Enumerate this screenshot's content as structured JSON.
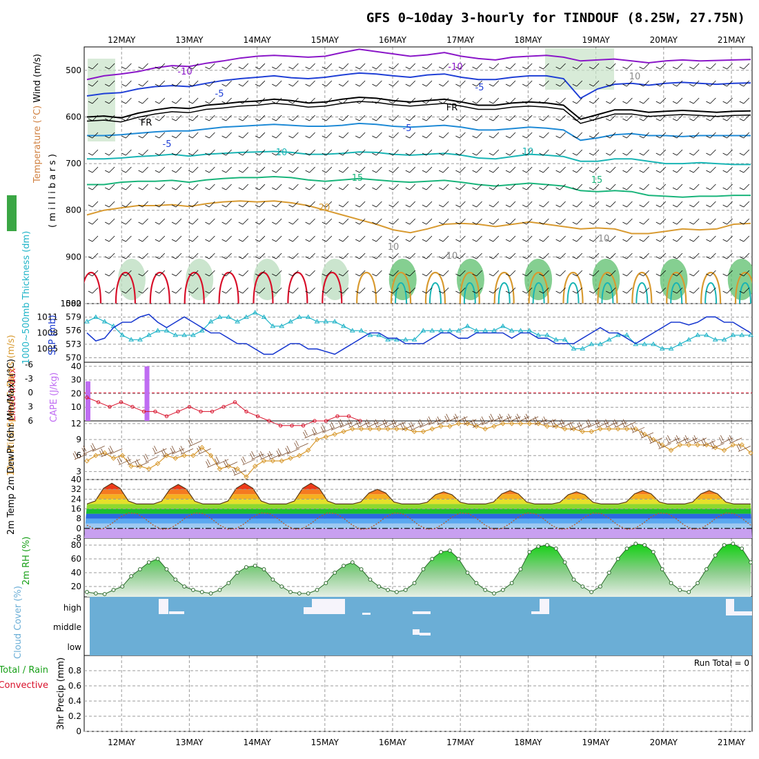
{
  "title": "GFS 0~10day 3-hourly for TINDOUF (8.25W, 27.75N)",
  "dates": [
    "12MAY",
    "13MAY",
    "14MAY",
    "15MAY",
    "16MAY",
    "17MAY",
    "18MAY",
    "19MAY",
    "20MAY",
    "21MAY"
  ],
  "colors": {
    "purple": "#8a16c8",
    "blue": "#1f3fd6",
    "skyblue": "#1e8ad6",
    "teal": "#18b4b4",
    "green": "#18b47a",
    "orange": "#d89a30",
    "red": "#d8102a",
    "darkred": "#a01010",
    "cyan": "#20b4c8",
    "slp": "#1a3ad0",
    "cloud": "#6baed6",
    "cape": "#bf6cf2",
    "rh": "#18c818"
  },
  "chart_data": [
    {
      "type": "heatmap",
      "name": "upper-air",
      "ylabel_parts": [
        "Wind (m/s)",
        "Temperature (°C)",
        "RH (%)",
        "( m i l l i b a r s )"
      ],
      "y_ticks": [
        500,
        600,
        700,
        800,
        900,
        1000
      ],
      "ylim": [
        1000,
        450
      ],
      "contour_labels": [
        "-10",
        "-10",
        "-5",
        "-5",
        "FR",
        "FR",
        "-5",
        "-5",
        "10",
        "10",
        "15",
        "15",
        "20",
        "10",
        "10",
        "10",
        "10"
      ],
      "isotherms": [
        {
          "name": "-10",
          "p": [
            520,
            512,
            508,
            503,
            495,
            490,
            492,
            485,
            480,
            474,
            470,
            468,
            470,
            472,
            470,
            462,
            455,
            460,
            465,
            470,
            467,
            462,
            470,
            475,
            478,
            472,
            470,
            468,
            472,
            480,
            478,
            476,
            480,
            484,
            480,
            478,
            480,
            479,
            478,
            477
          ]
        },
        {
          "name": "-5",
          "p": [
            555,
            550,
            548,
            540,
            535,
            533,
            535,
            528,
            522,
            518,
            515,
            512,
            516,
            518,
            515,
            510,
            506,
            508,
            512,
            515,
            510,
            508,
            515,
            520,
            520,
            515,
            512,
            512,
            518,
            560,
            540,
            530,
            528,
            532,
            528,
            526,
            528,
            530,
            528,
            527
          ]
        },
        {
          "name": "FR",
          "p": [
            600,
            598,
            602,
            592,
            585,
            580,
            582,
            575,
            572,
            568,
            566,
            562,
            565,
            570,
            568,
            562,
            558,
            560,
            565,
            568,
            565,
            562,
            568,
            575,
            575,
            570,
            568,
            570,
            575,
            605,
            595,
            585,
            585,
            590,
            588,
            586,
            588,
            590,
            588,
            587
          ]
        },
        {
          "name": "5",
          "p": [
            640,
            640,
            638,
            635,
            632,
            630,
            630,
            626,
            622,
            620,
            618,
            616,
            618,
            620,
            620,
            618,
            614,
            616,
            620,
            622,
            620,
            618,
            622,
            628,
            628,
            625,
            622,
            624,
            628,
            650,
            645,
            638,
            636,
            640,
            640,
            642,
            640,
            640,
            640,
            640
          ]
        },
        {
          "name": "10",
          "p": [
            690,
            690,
            688,
            685,
            683,
            680,
            684,
            680,
            678,
            676,
            675,
            674,
            676,
            680,
            680,
            678,
            675,
            676,
            680,
            682,
            680,
            678,
            682,
            688,
            690,
            685,
            680,
            682,
            685,
            695,
            695,
            690,
            690,
            695,
            700,
            700,
            698,
            700,
            702,
            702
          ]
        },
        {
          "name": "15",
          "p": [
            745,
            745,
            740,
            738,
            738,
            736,
            740,
            735,
            732,
            730,
            730,
            728,
            730,
            735,
            738,
            735,
            732,
            735,
            738,
            740,
            738,
            736,
            740,
            745,
            748,
            745,
            742,
            745,
            748,
            758,
            760,
            758,
            760,
            768,
            770,
            772,
            770,
            770,
            768,
            768
          ]
        },
        {
          "name": "20",
          "p": [
            810,
            800,
            795,
            790,
            790,
            788,
            792,
            786,
            782,
            780,
            782,
            780,
            784,
            790,
            800,
            810,
            820,
            830,
            842,
            848,
            840,
            830,
            828,
            830,
            835,
            830,
            825,
            830,
            835,
            840,
            838,
            840,
            850,
            850,
            845,
            840,
            842,
            840,
            830,
            828
          ]
        }
      ]
    },
    {
      "type": "line",
      "name": "thickness-slp",
      "ylabel": "1000~500mb Thickness (dm)",
      "ylabel2": "SLP (mb)",
      "thickness_ticks": [
        570,
        573,
        576,
        579,
        582
      ],
      "slp_ticks": [
        1005,
        1008,
        1011
      ],
      "series": [
        {
          "name": "1000~500mb Thickness (dm)",
          "values": [
            578,
            579,
            578,
            577,
            575,
            574,
            574,
            575,
            576,
            576,
            575,
            575,
            575,
            576,
            578,
            579,
            579,
            578,
            579,
            580,
            579,
            577,
            577,
            578,
            579,
            579,
            578,
            578,
            578,
            577,
            576,
            576,
            575,
            575,
            574,
            574,
            574,
            574,
            576,
            576,
            576,
            576,
            576,
            577,
            576,
            576,
            576,
            577,
            576,
            576,
            576,
            575,
            575,
            574,
            574,
            572,
            572,
            573,
            573,
            574,
            575,
            575,
            573,
            573,
            573,
            572,
            572,
            573,
            574,
            575,
            575,
            574,
            574,
            575,
            575,
            575
          ]
        },
        {
          "name": "SLP (mb)",
          "values": [
            1008,
            1006.5,
            1007,
            1009,
            1010,
            1010,
            1011,
            1011.5,
            1010,
            1009,
            1010,
            1011,
            1010,
            1009,
            1008,
            1008,
            1007,
            1006,
            1006,
            1005,
            1004,
            1004,
            1005,
            1006,
            1006,
            1005,
            1005,
            1004.5,
            1004,
            1005,
            1006,
            1007,
            1008,
            1008,
            1007,
            1007,
            1006,
            1006,
            1006,
            1007,
            1008,
            1008,
            1007,
            1007,
            1008,
            1008,
            1008,
            1008,
            1007,
            1008,
            1008,
            1007,
            1007,
            1006,
            1006,
            1006,
            1007,
            1008,
            1009,
            1008,
            1008,
            1007,
            1006,
            1007,
            1008,
            1009,
            1010,
            1010,
            1009.5,
            1010,
            1011,
            1011,
            1010,
            1010,
            1009,
            1008
          ]
        }
      ]
    },
    {
      "type": "bar",
      "name": "cape-li",
      "ylabel": "Lifted Index",
      "ylabel2": "CAPE (J/kg)",
      "li_ticks": [
        -6,
        -3,
        0,
        3,
        6
      ],
      "cape_ticks": [
        10,
        20,
        30,
        40
      ],
      "cape_bars": [
        {
          "day": 0.0,
          "value": 29
        },
        {
          "day": 1.38,
          "value": 40
        }
      ],
      "lifted_index": [
        1,
        2,
        3,
        2,
        3,
        4,
        4,
        5,
        4,
        3,
        4,
        4,
        3,
        2,
        4,
        5,
        6,
        7,
        7,
        7,
        6,
        6,
        5,
        5,
        6
      ]
    },
    {
      "type": "line",
      "name": "wind10m",
      "ylabel": "10m Wind Speed & Barbs (m/s)",
      "y_ticks": [
        3,
        6,
        9,
        12
      ],
      "ylim": [
        1.5,
        12.5
      ],
      "values": [
        5,
        6,
        6.5,
        5.5,
        6,
        4,
        4,
        3.5,
        4.5,
        6,
        5.5,
        6,
        6,
        7.5,
        6,
        3.5,
        4,
        3.5,
        2,
        4,
        5,
        5,
        5,
        5.5,
        6,
        7,
        9,
        9.5,
        10,
        10.5,
        11,
        11,
        11,
        11,
        11,
        11,
        11,
        10.5,
        10.5,
        11,
        11.5,
        11.5,
        12,
        12,
        11.5,
        11,
        11.5,
        12,
        12,
        12,
        12,
        12,
        11.5,
        11.5,
        11,
        11,
        10.5,
        10.5,
        11,
        11,
        11,
        11,
        11,
        10,
        9,
        8,
        7,
        8,
        8,
        8,
        8,
        7.5,
        7,
        8,
        8,
        6.5
      ]
    },
    {
      "type": "area",
      "name": "temp2m",
      "ylabel": "2m Temp 2m DewPt (6hr Min/Max) (°C)",
      "y_ticks": [
        -8,
        0,
        8,
        16,
        24,
        32,
        40
      ],
      "ylim": [
        -8,
        40
      ],
      "max_temps": [
        37,
        36,
        37,
        37,
        32,
        30,
        31,
        30,
        31,
        31
      ]
    },
    {
      "type": "area",
      "name": "rh2m",
      "ylabel": "2m RH (%)",
      "y_ticks": [
        20,
        40,
        60,
        80
      ],
      "ylim": [
        5,
        90
      ],
      "values": [
        12,
        10,
        9,
        15,
        20,
        35,
        45,
        55,
        60,
        45,
        30,
        20,
        15,
        12,
        10,
        15,
        25,
        40,
        48,
        50,
        45,
        30,
        20,
        12,
        10,
        10,
        15,
        25,
        40,
        50,
        55,
        45,
        30,
        20,
        15,
        12,
        15,
        25,
        45,
        60,
        70,
        72,
        60,
        40,
        25,
        15,
        10,
        15,
        25,
        45,
        70,
        78,
        80,
        75,
        55,
        30,
        20,
        12,
        20,
        40,
        60,
        75,
        82,
        80,
        70,
        45,
        25,
        15,
        12,
        25,
        45,
        65,
        80,
        82,
        75,
        55
      ]
    },
    {
      "type": "heatmap",
      "name": "cloud",
      "ylabel": "Cloud Cover (%)",
      "y_ticks": [
        "high",
        "middle",
        "low"
      ]
    },
    {
      "type": "bar",
      "name": "precip",
      "ylabel": "3hr Precip (mm)",
      "legend_parts": [
        "Total / Rain",
        "Convective"
      ],
      "run_total": "Run Total = 0",
      "y_ticks": [
        0,
        0.2,
        0.4,
        0.6,
        0.8
      ],
      "ylim": [
        0,
        1
      ]
    }
  ]
}
